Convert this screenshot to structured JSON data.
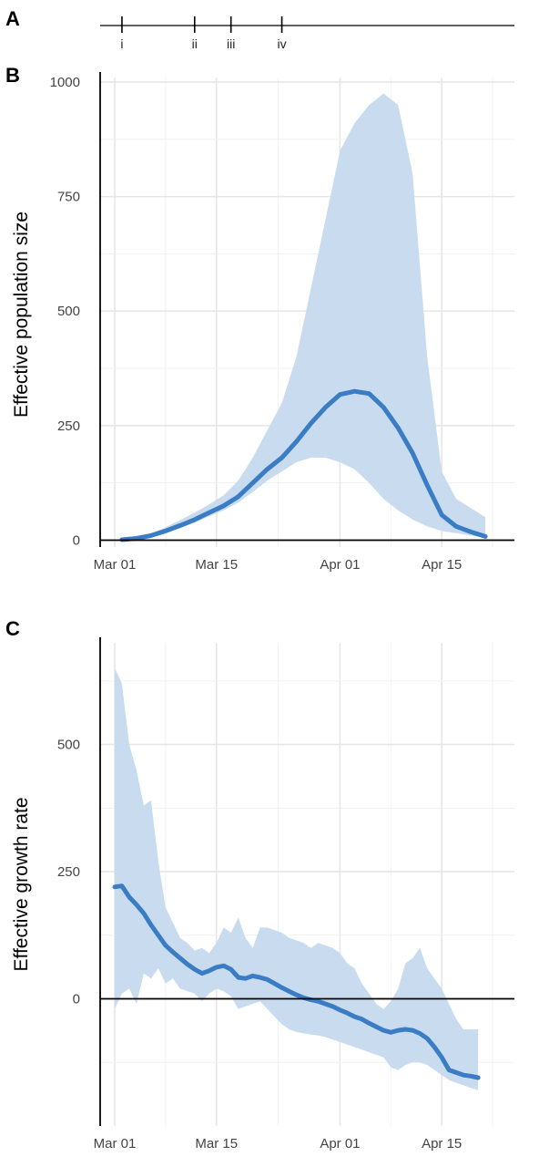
{
  "panels": {
    "timeline_label": "A",
    "ne_label": "B",
    "growth_label": "C"
  },
  "chart_data": [
    {
      "type": "timeline",
      "panel": "A",
      "events": [
        {
          "label": "i",
          "date": "2020-03-02"
        },
        {
          "label": "ii",
          "date": "2020-03-12"
        },
        {
          "label": "iii",
          "date": "2020-03-17"
        },
        {
          "label": "iv",
          "date": "2020-03-24"
        }
      ],
      "xlim": [
        "2020-02-28",
        "2020-04-25"
      ]
    },
    {
      "type": "area",
      "panel": "B",
      "xlabel": "",
      "ylabel": "Effective population size",
      "xlim": [
        "2020-02-28",
        "2020-04-25"
      ],
      "ylim": [
        -15,
        1010
      ],
      "x_ticks": [
        "2020-03-01",
        "2020-03-15",
        "2020-04-01",
        "2020-04-15"
      ],
      "x_tick_labels": [
        "Mar 01",
        "Mar 15",
        "Apr 01",
        "Apr 15"
      ],
      "y_ticks": [
        0,
        250,
        500,
        750,
        1000
      ],
      "y_tick_labels": [
        "0",
        "250",
        "500",
        "750",
        "1000"
      ],
      "grid": true,
      "line_color": "#3a7dc4",
      "ribbon_color": "#c9dcef",
      "series": [
        {
          "x": [
            "2020-03-02",
            "2020-03-04",
            "2020-03-06",
            "2020-03-08",
            "2020-03-10",
            "2020-03-12",
            "2020-03-14",
            "2020-03-16",
            "2020-03-18",
            "2020-03-20",
            "2020-03-22",
            "2020-03-24",
            "2020-03-26",
            "2020-03-28",
            "2020-03-30",
            "2020-04-01",
            "2020-04-03",
            "2020-04-05",
            "2020-04-07",
            "2020-04-09",
            "2020-04-11",
            "2020-04-13",
            "2020-04-15",
            "2020-04-17",
            "2020-04-19",
            "2020-04-21"
          ],
          "median": [
            1,
            4,
            10,
            20,
            32,
            45,
            60,
            75,
            95,
            125,
            155,
            180,
            215,
            255,
            290,
            318,
            325,
            320,
            290,
            245,
            190,
            120,
            55,
            30,
            18,
            8
          ],
          "lower": [
            1,
            3,
            8,
            16,
            26,
            38,
            52,
            65,
            82,
            105,
            130,
            150,
            170,
            180,
            180,
            170,
            155,
            125,
            90,
            65,
            45,
            30,
            20,
            15,
            10,
            5
          ],
          "upper": [
            2,
            6,
            14,
            28,
            44,
            60,
            78,
            98,
            130,
            180,
            240,
            300,
            400,
            550,
            700,
            850,
            910,
            950,
            975,
            950,
            800,
            400,
            150,
            90,
            70,
            50
          ]
        }
      ]
    },
    {
      "type": "area",
      "panel": "C",
      "xlabel": "",
      "ylabel": "Effective growth rate",
      "xlim": [
        "2020-02-28",
        "2020-04-25"
      ],
      "ylim": [
        -250,
        700
      ],
      "x_ticks": [
        "2020-03-01",
        "2020-03-15",
        "2020-04-01",
        "2020-04-15"
      ],
      "x_tick_labels": [
        "Mar 01",
        "Mar 15",
        "Apr 01",
        "Apr 15"
      ],
      "y_ticks": [
        0,
        250,
        500
      ],
      "y_tick_labels": [
        "0",
        "250",
        "500"
      ],
      "grid": true,
      "line_color": "#3a7dc4",
      "ribbon_color": "#c9dcef",
      "series": [
        {
          "x": [
            "2020-03-01",
            "2020-03-02",
            "2020-03-03",
            "2020-03-04",
            "2020-03-05",
            "2020-03-06",
            "2020-03-07",
            "2020-03-08",
            "2020-03-09",
            "2020-03-10",
            "2020-03-11",
            "2020-03-12",
            "2020-03-13",
            "2020-03-14",
            "2020-03-15",
            "2020-03-16",
            "2020-03-17",
            "2020-03-18",
            "2020-03-19",
            "2020-03-20",
            "2020-03-21",
            "2020-03-22",
            "2020-03-23",
            "2020-03-24",
            "2020-03-25",
            "2020-03-26",
            "2020-03-27",
            "2020-03-28",
            "2020-03-29",
            "2020-03-30",
            "2020-03-31",
            "2020-04-01",
            "2020-04-02",
            "2020-04-03",
            "2020-04-04",
            "2020-04-05",
            "2020-04-06",
            "2020-04-07",
            "2020-04-08",
            "2020-04-09",
            "2020-04-10",
            "2020-04-11",
            "2020-04-12",
            "2020-04-13",
            "2020-04-14",
            "2020-04-15",
            "2020-04-16",
            "2020-04-17",
            "2020-04-18",
            "2020-04-19",
            "2020-04-20"
          ],
          "median": [
            220,
            222,
            200,
            185,
            168,
            145,
            125,
            105,
            92,
            80,
            68,
            58,
            50,
            55,
            62,
            65,
            58,
            42,
            40,
            45,
            42,
            38,
            30,
            22,
            15,
            8,
            2,
            -2,
            -5,
            -10,
            -15,
            -22,
            -28,
            -35,
            -40,
            -48,
            -55,
            -62,
            -66,
            -62,
            -60,
            -62,
            -68,
            -78,
            -95,
            -115,
            -140,
            -145,
            -150,
            -152,
            -155
          ],
          "lower": [
            -20,
            10,
            20,
            -10,
            50,
            40,
            60,
            30,
            40,
            20,
            15,
            10,
            -5,
            10,
            20,
            15,
            5,
            -20,
            -15,
            -10,
            -5,
            -20,
            -35,
            -50,
            -60,
            -65,
            -68,
            -70,
            -72,
            -75,
            -80,
            -85,
            -90,
            -95,
            -100,
            -105,
            -110,
            -115,
            -135,
            -140,
            -130,
            -125,
            -125,
            -130,
            -140,
            -150,
            -160,
            -165,
            -170,
            -175,
            -180
          ],
          "upper": [
            650,
            620,
            500,
            450,
            380,
            390,
            270,
            180,
            150,
            120,
            110,
            95,
            100,
            90,
            110,
            140,
            130,
            160,
            120,
            100,
            140,
            140,
            135,
            130,
            120,
            115,
            110,
            100,
            110,
            105,
            100,
            90,
            70,
            60,
            30,
            10,
            -10,
            -20,
            -5,
            20,
            70,
            80,
            100,
            60,
            40,
            20,
            -10,
            -40,
            -60,
            -60,
            -60
          ]
        }
      ]
    }
  ]
}
